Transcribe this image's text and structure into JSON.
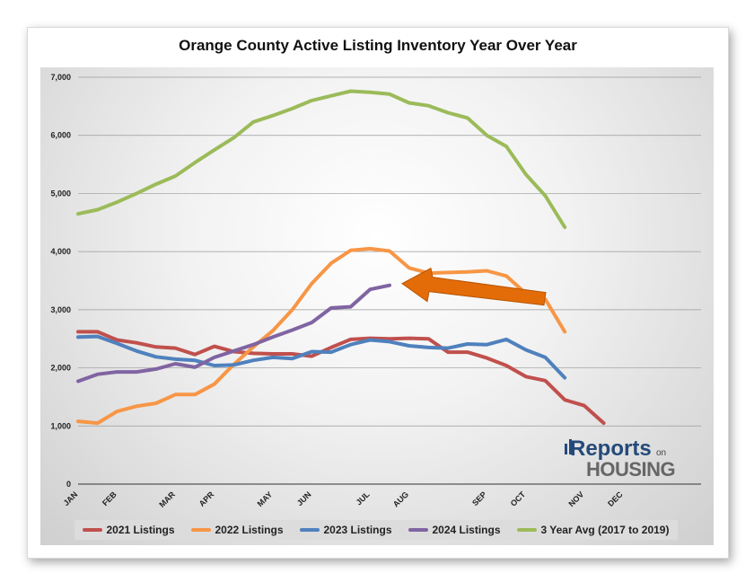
{
  "title": "Orange County Active Listing Inventory Year Over Year",
  "logo": {
    "part1": "Reports",
    "part2": "on",
    "part3": "HOUSING"
  },
  "chart_data": {
    "type": "line",
    "title": "Orange County Active Listing Inventory Year Over Year",
    "xlabel": "",
    "ylabel": "",
    "ylim": [
      0,
      7000
    ],
    "yticks": [
      0,
      1000,
      2000,
      3000,
      4000,
      5000,
      6000,
      7000
    ],
    "ytick_labels": [
      "0",
      "1,000",
      "2,000",
      "3,000",
      "4,000",
      "5,000",
      "6,000",
      "7,000"
    ],
    "x_points": 33,
    "month_labels": [
      {
        "label": "JAN",
        "index": 0
      },
      {
        "label": "FEB",
        "index": 2
      },
      {
        "label": "MAR",
        "index": 5
      },
      {
        "label": "APR",
        "index": 7
      },
      {
        "label": "MAY",
        "index": 10
      },
      {
        "label": "JUN",
        "index": 12
      },
      {
        "label": "JUL",
        "index": 15
      },
      {
        "label": "AUG",
        "index": 17
      },
      {
        "label": "SEP",
        "index": 21
      },
      {
        "label": "OCT",
        "index": 23
      },
      {
        "label": "NOV",
        "index": 26
      },
      {
        "label": "DEC",
        "index": 28
      }
    ],
    "grid": true,
    "legend_position": "bottom",
    "series": [
      {
        "name": "2021 Listings",
        "color": "#c0504d",
        "values": [
          2620,
          2620,
          2480,
          2430,
          2360,
          2340,
          2230,
          2370,
          2280,
          2250,
          2240,
          2240,
          2200,
          2350,
          2490,
          2510,
          2500,
          2510,
          2500,
          2270,
          2270,
          2170,
          2040,
          1850,
          1780,
          1450,
          1350,
          1050
        ]
      },
      {
        "name": "2022 Listings",
        "color": "#f79646",
        "values": [
          1080,
          1050,
          1250,
          1340,
          1390,
          1540,
          1540,
          1720,
          2060,
          2360,
          2640,
          3000,
          3450,
          3800,
          4020,
          4050,
          4010,
          3720,
          3630,
          3640,
          3650,
          3670,
          3580,
          3280,
          3180,
          2620
        ]
      },
      {
        "name": "2023 Listings",
        "color": "#4f81bd",
        "values": [
          2530,
          2540,
          2420,
          2290,
          2190,
          2150,
          2130,
          2040,
          2050,
          2130,
          2180,
          2160,
          2280,
          2270,
          2400,
          2480,
          2450,
          2380,
          2350,
          2340,
          2410,
          2400,
          2490,
          2310,
          2180,
          1830
        ]
      },
      {
        "name": "2024 Listings",
        "color": "#8064a2",
        "values": [
          1770,
          1890,
          1930,
          1930,
          1980,
          2070,
          2010,
          2180,
          2290,
          2400,
          2530,
          2650,
          2780,
          3030,
          3050,
          3350,
          3420
        ]
      },
      {
        "name": "3 Year Avg (2017 to 2019)",
        "color": "#9bbb59",
        "values": [
          4650,
          4720,
          4850,
          5000,
          5160,
          5300,
          5530,
          5750,
          5960,
          6230,
          6340,
          6460,
          6600,
          6680,
          6760,
          6740,
          6710,
          6560,
          6510,
          6390,
          6300,
          6000,
          5810,
          5330,
          4960,
          4420
        ]
      }
    ],
    "annotation": {
      "type": "arrow",
      "color": "#e36c09",
      "points_to": "2024 Listings"
    }
  }
}
